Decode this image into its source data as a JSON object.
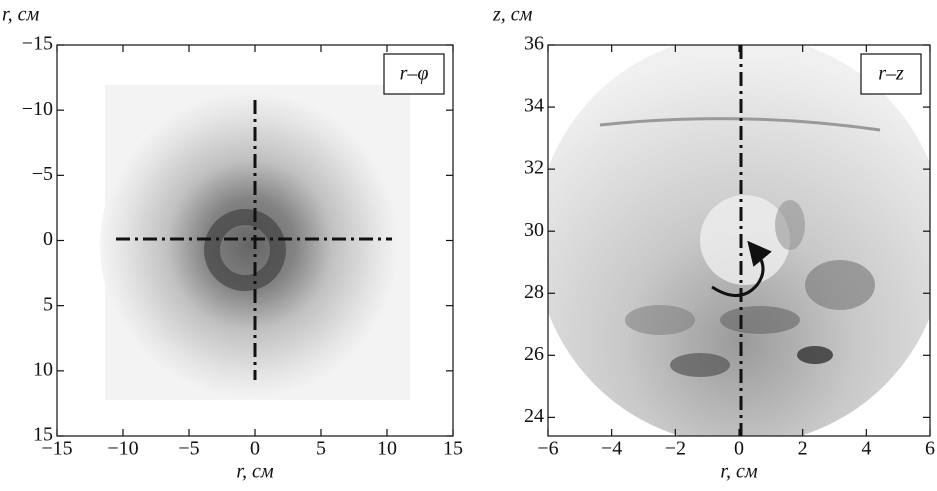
{
  "chart_data": [
    {
      "type": "image",
      "panel_label": "r–φ",
      "x_label": "r, см",
      "y_label": "r, см",
      "xlim": [
        -15,
        15
      ],
      "ylim": [
        -15,
        15
      ],
      "y_inverted": true,
      "xticks": [
        {
          "value": -15,
          "label": "−15"
        },
        {
          "value": -10,
          "label": "−10"
        },
        {
          "value": -5,
          "label": "−5"
        },
        0,
        5,
        10,
        15
      ],
      "yticks": [
        {
          "value": -15,
          "label": "−15"
        },
        {
          "value": -10,
          "label": "−10"
        },
        {
          "value": -5,
          "label": "−5"
        },
        0,
        5,
        10,
        15
      ]
    },
    {
      "type": "image",
      "panel_label": "r–z",
      "x_label": "r, см",
      "y_label": "z, см",
      "xlim": [
        -6,
        6
      ],
      "ylim": [
        23.4,
        36
      ],
      "y_inverted": false,
      "xticks": [
        {
          "value": -6,
          "label": "−6"
        },
        {
          "value": -4,
          "label": "−4"
        },
        {
          "value": -2,
          "label": "−2"
        },
        0,
        2,
        4,
        6
      ],
      "yticks": [
        24,
        26,
        28,
        30,
        32,
        34,
        36
      ]
    }
  ]
}
